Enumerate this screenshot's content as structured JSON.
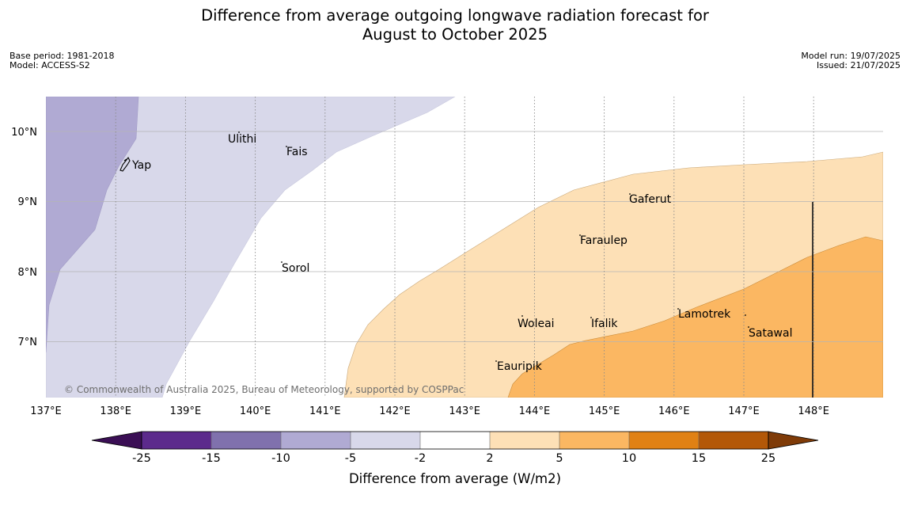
{
  "title": {
    "line1": "Difference from average outgoing longwave radiation forecast for",
    "line2": "August to October 2025"
  },
  "meta_left": {
    "base_period": "Base period: 1981-2018",
    "model": "Model: ACCESS-S2"
  },
  "meta_right": {
    "model_run": "Model run: 19/07/2025",
    "issued": "Issued: 21/07/2025"
  },
  "map": {
    "lat_ticks": [
      "10°N",
      "9°N",
      "8°N",
      "7°N"
    ],
    "lon_ticks": [
      "137°E",
      "138°E",
      "139°E",
      "140°E",
      "141°E",
      "142°E",
      "143°E",
      "144°E",
      "145°E",
      "146°E",
      "147°E",
      "148°E"
    ],
    "places": [
      "Yap",
      "Ulithi",
      "Fais",
      "Gaferut",
      "Faraulep",
      "Sorol",
      "Woleai",
      "Ifalik",
      "Lamotrek",
      "Satawal",
      "Eauripik"
    ],
    "credit": "© Commonwealth of Australia 2025, Bureau of Meteorology, supported by COSPPac"
  },
  "colorbar": {
    "label": "Difference from average (W/m2)",
    "ticks": [
      "-25",
      "-15",
      "-10",
      "-5",
      "-2",
      "2",
      "5",
      "10",
      "15",
      "25"
    ],
    "colors": {
      "below_-25": "#3b0f55",
      "-25_-15": "#5c2a8c",
      "-15_-10": "#8071ad",
      "-10_-5": "#b0aad3",
      "-5_-2": "#d8d8ea",
      "-2_2": "#ffffff",
      "2_5": "#fde0b6",
      "5_10": "#fbb762",
      "10_15": "#e08114",
      "15_25": "#b35808",
      "above_25": "#7f3b08"
    }
  }
}
